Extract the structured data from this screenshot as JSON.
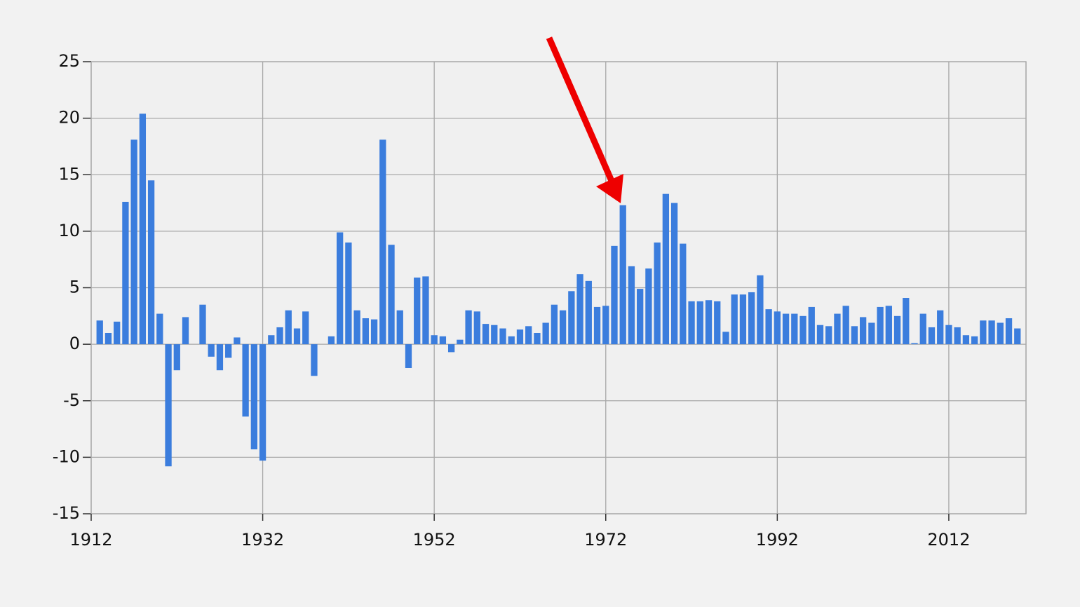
{
  "chart_data": {
    "type": "bar",
    "x": [
      1913,
      1914,
      1915,
      1916,
      1917,
      1918,
      1919,
      1920,
      1921,
      1922,
      1923,
      1924,
      1925,
      1926,
      1927,
      1928,
      1929,
      1930,
      1931,
      1932,
      1933,
      1934,
      1935,
      1936,
      1937,
      1938,
      1939,
      1940,
      1941,
      1942,
      1943,
      1944,
      1945,
      1946,
      1947,
      1948,
      1949,
      1950,
      1951,
      1952,
      1953,
      1954,
      1955,
      1956,
      1957,
      1958,
      1959,
      1960,
      1961,
      1962,
      1963,
      1964,
      1965,
      1966,
      1967,
      1968,
      1969,
      1970,
      1971,
      1972,
      1973,
      1974,
      1975,
      1976,
      1977,
      1978,
      1979,
      1980,
      1981,
      1982,
      1983,
      1984,
      1985,
      1986,
      1987,
      1988,
      1989,
      1990,
      1991,
      1992,
      1993,
      1994,
      1995,
      1996,
      1997,
      1998,
      1999,
      2000,
      2001,
      2002,
      2003,
      2004,
      2005,
      2006,
      2007,
      2008,
      2009,
      2010,
      2011,
      2012,
      2013,
      2014,
      2015,
      2016,
      2017,
      2018,
      2019,
      2020
    ],
    "values": [
      2.1,
      1.0,
      2.0,
      12.6,
      18.1,
      20.4,
      14.5,
      2.7,
      -10.8,
      -2.3,
      2.4,
      0,
      3.5,
      -1.1,
      -2.3,
      -1.2,
      0.6,
      -6.4,
      -9.3,
      -10.3,
      0.8,
      1.5,
      3.0,
      1.4,
      2.9,
      -2.8,
      0,
      0.7,
      9.9,
      9.0,
      3.0,
      2.3,
      2.2,
      18.1,
      8.8,
      3.0,
      -2.1,
      5.9,
      6.0,
      0.8,
      0.7,
      -0.7,
      0.4,
      3.0,
      2.9,
      1.8,
      1.7,
      1.4,
      0.7,
      1.3,
      1.6,
      1.0,
      1.9,
      3.5,
      3.0,
      4.7,
      6.2,
      5.6,
      3.3,
      3.4,
      8.7,
      12.3,
      6.9,
      4.9,
      6.7,
      9.0,
      13.3,
      12.5,
      8.9,
      3.8,
      3.8,
      3.9,
      3.8,
      1.1,
      4.4,
      4.4,
      4.6,
      6.1,
      3.1,
      2.9,
      2.7,
      2.7,
      2.5,
      3.3,
      1.7,
      1.6,
      2.7,
      3.4,
      1.6,
      2.4,
      1.9,
      3.3,
      3.4,
      2.5,
      4.1,
      0.1,
      2.7,
      1.5,
      3.0,
      1.7,
      1.5,
      0.8,
      0.7,
      2.1,
      2.1,
      1.9,
      2.3,
      1.4
    ],
    "color": "#3b7ddd",
    "xlim": [
      1912,
      2021
    ],
    "xticks": [
      1912,
      1932,
      1952,
      1972,
      1992,
      2012
    ],
    "ylim": [
      -15,
      25
    ],
    "yticks": [
      -15,
      -10,
      -5,
      0,
      5,
      10,
      15,
      20,
      25
    ],
    "grid": true
  }
}
